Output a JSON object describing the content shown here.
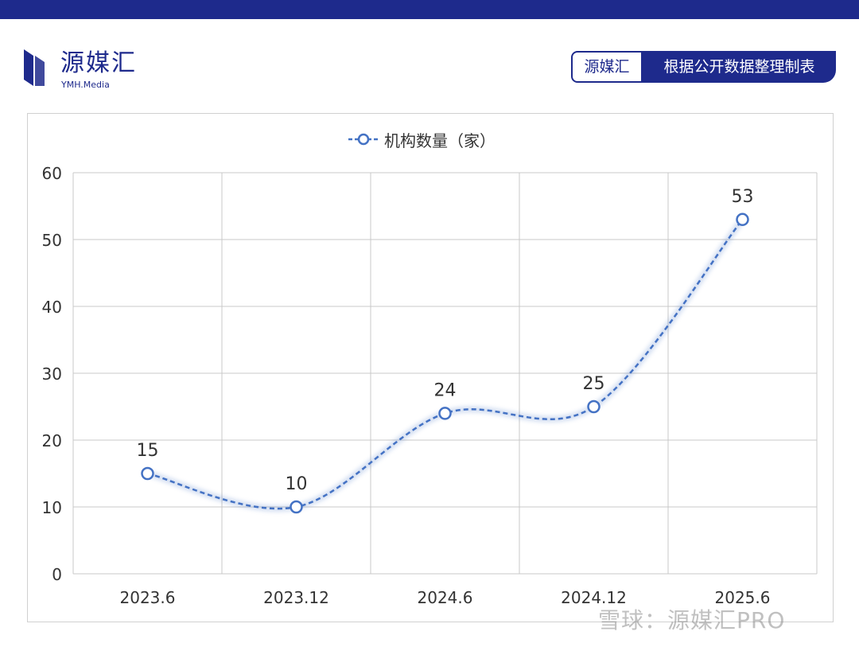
{
  "brand": {
    "name": "源媒汇",
    "sub": "YMH.Media"
  },
  "tag": {
    "left": "源媒汇",
    "right": "根据公开数据整理制表"
  },
  "watermark": "雪球：源媒汇PRO",
  "colors": {
    "accent": "#1e2a8c",
    "line": "#4472c4"
  },
  "chart_data": {
    "type": "line",
    "categories": [
      "2023.6",
      "2023.12",
      "2024.6",
      "2024.12",
      "2025.6"
    ],
    "series": [
      {
        "name": "机构数量（家）",
        "values": [
          15,
          10,
          24,
          25,
          53
        ],
        "style": "dashed",
        "smooth": true
      }
    ],
    "ylim": [
      0,
      60
    ],
    "yticks": [
      0,
      10,
      20,
      30,
      40,
      50,
      60
    ],
    "grid": true,
    "legend": "top-center",
    "data_labels": true
  }
}
